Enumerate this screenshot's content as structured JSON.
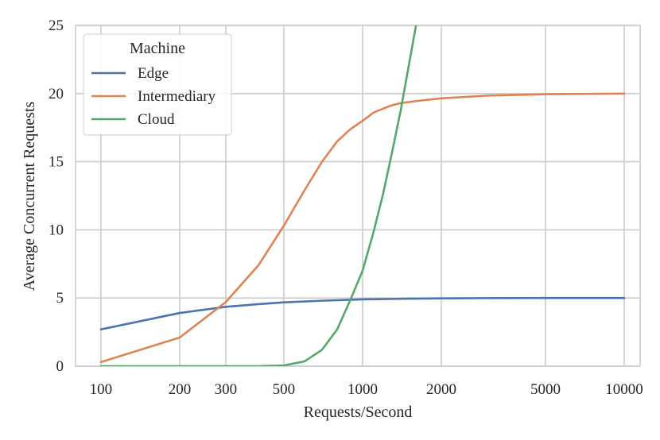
{
  "chart_data": {
    "type": "line",
    "xlabel": "Requests/Second",
    "ylabel": "Average Concurrent Requests",
    "xscale": "log",
    "xlim": [
      80,
      11500
    ],
    "ylim": [
      0,
      25
    ],
    "x_ticks": [
      100,
      200,
      300,
      500,
      1000,
      2000,
      5000,
      10000
    ],
    "y_ticks": [
      0,
      5,
      10,
      15,
      20,
      25
    ],
    "grid": true,
    "legend": {
      "title": "Machine",
      "placement": "top-left"
    },
    "series": [
      {
        "name": "Edge",
        "color": "#4c72b0",
        "points": [
          [
            100,
            2.7
          ],
          [
            200,
            3.9
          ],
          [
            300,
            4.35
          ],
          [
            400,
            4.55
          ],
          [
            500,
            4.68
          ],
          [
            700,
            4.8
          ],
          [
            1000,
            4.9
          ],
          [
            1500,
            4.95
          ],
          [
            2000,
            4.97
          ],
          [
            3000,
            4.99
          ],
          [
            5000,
            5.0
          ],
          [
            10000,
            5.0
          ]
        ]
      },
      {
        "name": "Intermediary",
        "color": "#dd8452",
        "points": [
          [
            100,
            0.3
          ],
          [
            200,
            2.1
          ],
          [
            300,
            4.7
          ],
          [
            400,
            7.4
          ],
          [
            500,
            10.3
          ],
          [
            600,
            12.9
          ],
          [
            700,
            15.0
          ],
          [
            800,
            16.5
          ],
          [
            900,
            17.4
          ],
          [
            1000,
            18.0
          ],
          [
            1100,
            18.6
          ],
          [
            1200,
            18.9
          ],
          [
            1300,
            19.15
          ],
          [
            1400,
            19.3
          ],
          [
            1600,
            19.45
          ],
          [
            2000,
            19.65
          ],
          [
            3000,
            19.85
          ],
          [
            5000,
            19.95
          ],
          [
            10000,
            20.0
          ]
        ]
      },
      {
        "name": "Cloud",
        "color": "#55a868",
        "points": [
          [
            100,
            0.0
          ],
          [
            300,
            0.0
          ],
          [
            400,
            0.0
          ],
          [
            500,
            0.05
          ],
          [
            600,
            0.35
          ],
          [
            700,
            1.2
          ],
          [
            800,
            2.7
          ],
          [
            900,
            4.9
          ],
          [
            1000,
            7.0
          ],
          [
            1100,
            9.8
          ],
          [
            1200,
            12.7
          ],
          [
            1300,
            15.8
          ],
          [
            1400,
            18.8
          ],
          [
            1500,
            22.0
          ],
          [
            1600,
            25.0
          ]
        ]
      }
    ]
  }
}
